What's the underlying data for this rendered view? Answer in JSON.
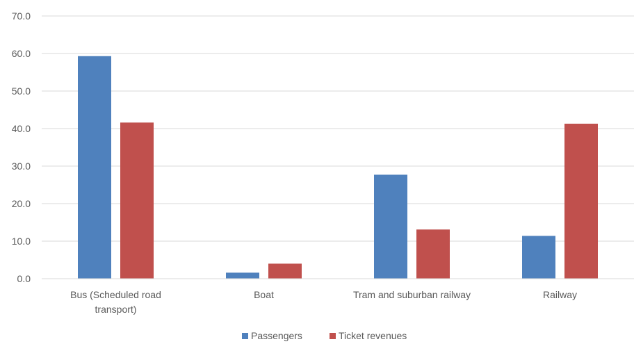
{
  "chart_data": {
    "type": "bar",
    "categories": [
      [
        "Bus (Scheduled road",
        "transport)"
      ],
      [
        "Boat"
      ],
      [
        "Tram and suburban railway"
      ],
      [
        "Railway"
      ]
    ],
    "series": [
      {
        "name": "Passengers",
        "color": "#4f81bd",
        "values": [
          59.3,
          1.6,
          27.7,
          11.4
        ]
      },
      {
        "name": "Ticket revenues",
        "color": "#c0504d",
        "values": [
          41.6,
          4.0,
          13.1,
          41.3
        ]
      }
    ],
    "yticks": [
      "0.0",
      "10.0",
      "20.0",
      "30.0",
      "40.0",
      "50.0",
      "60.0",
      "70.0"
    ],
    "ylim": [
      0,
      70
    ],
    "grid": true,
    "legend": "bottom",
    "title": "",
    "xlabel": "",
    "ylabel": ""
  }
}
